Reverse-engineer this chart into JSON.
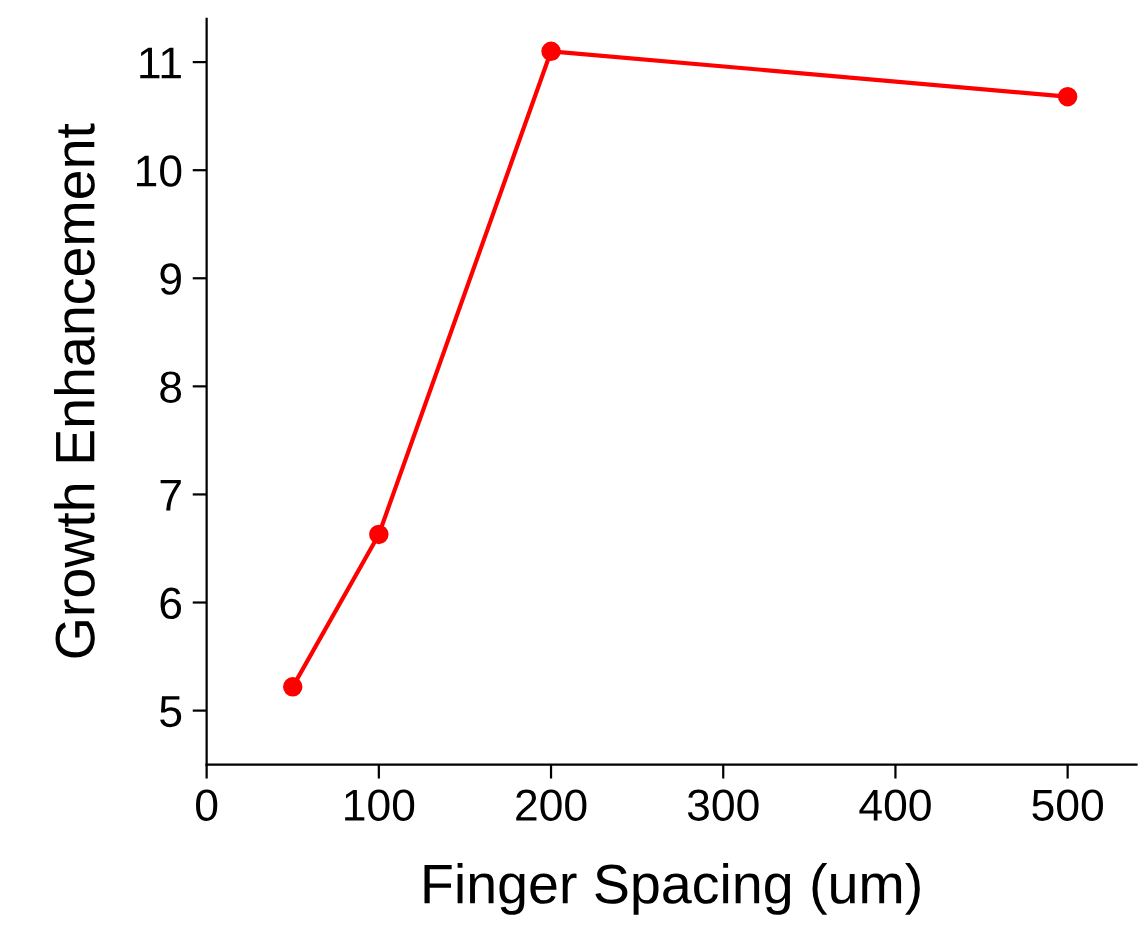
{
  "chart_data": {
    "type": "line",
    "xlabel": "Finger Spacing (um)",
    "ylabel": "Growth Enhancement",
    "x": [
      50,
      100,
      200,
      500
    ],
    "series": [
      {
        "color": "#ff0000",
        "values": [
          5.22,
          6.63,
          11.1,
          10.68
        ]
      }
    ],
    "xlim": [
      0,
      540
    ],
    "xticks": [
      0,
      100,
      200,
      300,
      400,
      500
    ],
    "ylim": [
      4.5,
      11.4
    ],
    "yticks": [
      5,
      6,
      7,
      8,
      9,
      10,
      11
    ],
    "marker": "circle",
    "line_style": "solid",
    "grid": false,
    "legend": false
  }
}
